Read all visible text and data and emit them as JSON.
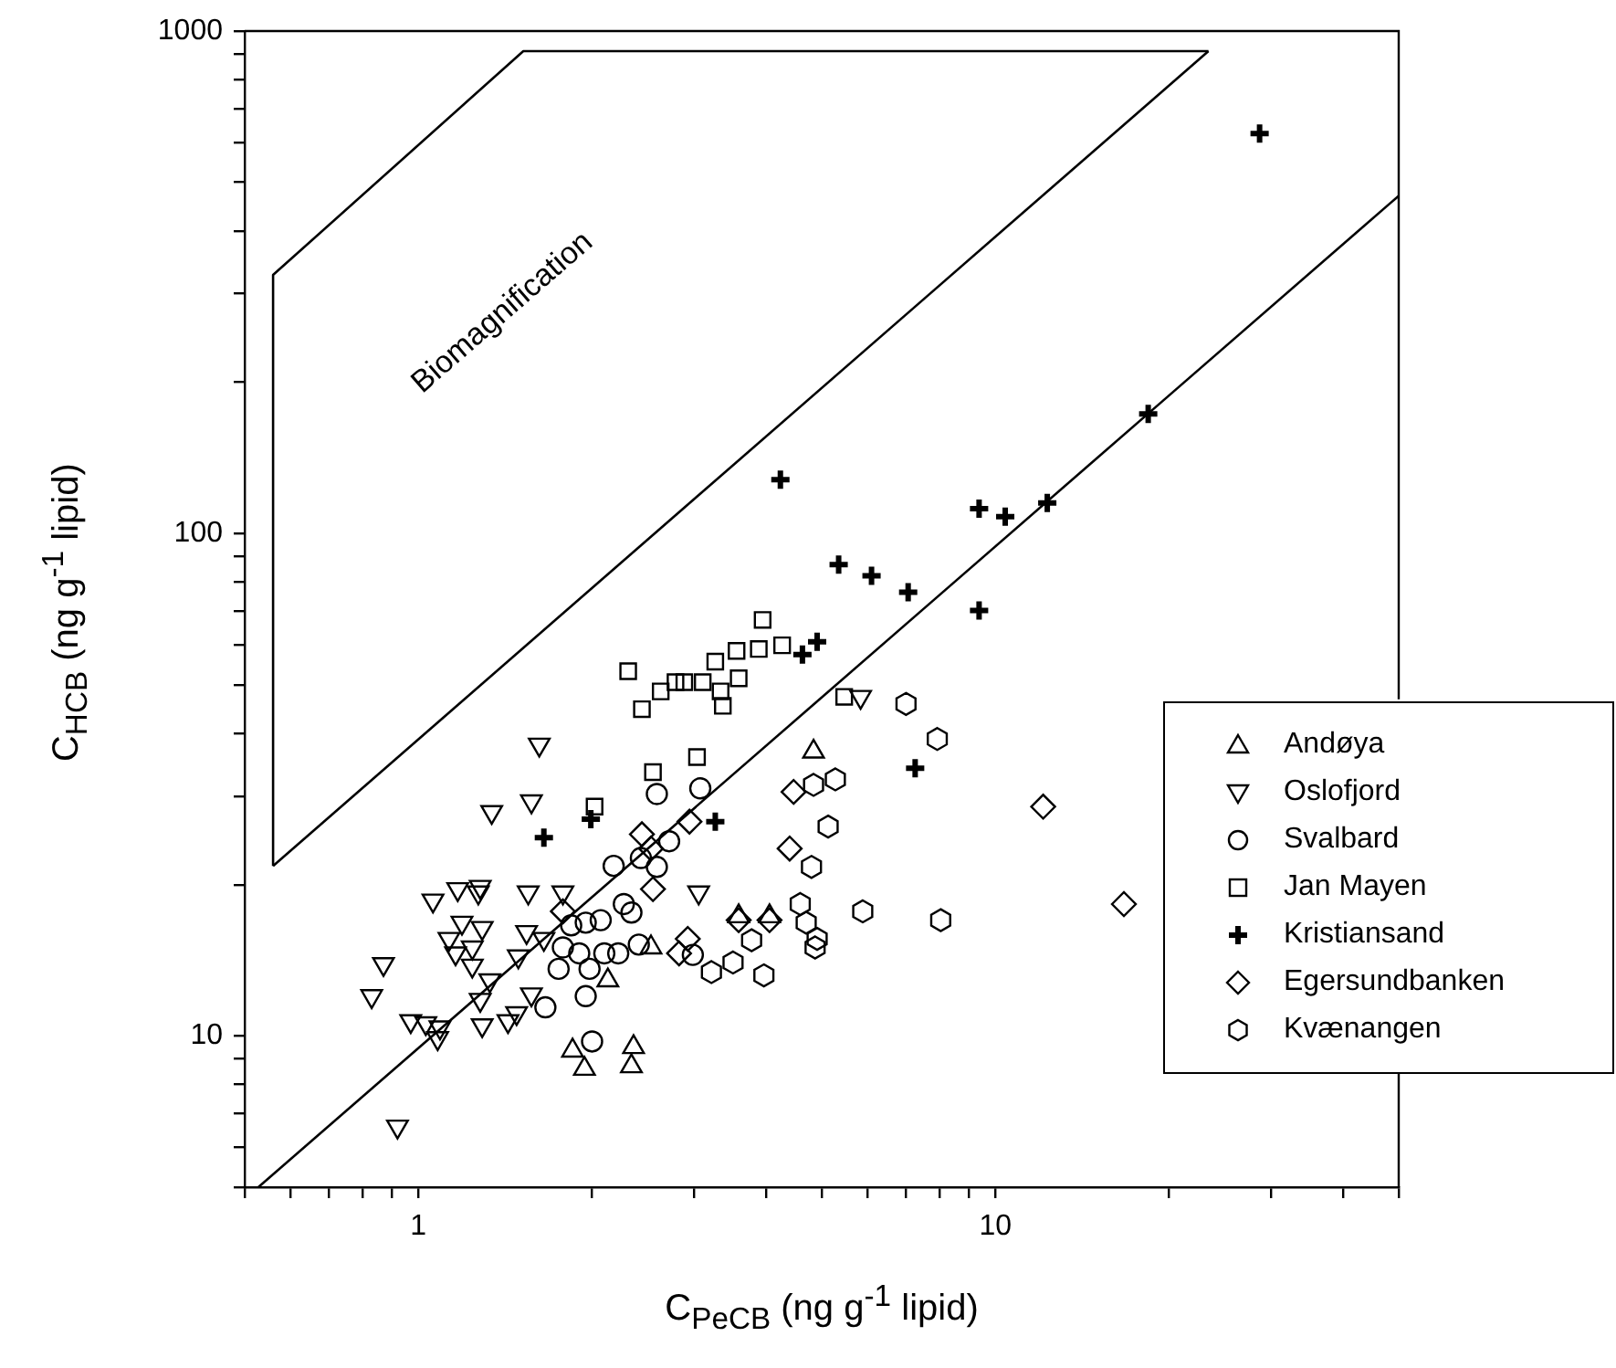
{
  "chart_data": {
    "type": "scatter",
    "xlabel": "C$_{PeCB}$ (ng g$^{-1}$ lipid)",
    "ylabel": "C$_{HCB}$ (ng g$^{-1}$ lipid)",
    "annotations": [
      "Biomagnification"
    ],
    "log": "xy",
    "legend": "right",
    "xlim": [
      0.5,
      50
    ],
    "ylim": [
      5,
      1000
    ],
    "xticks": [
      {
        "value": 0.5,
        "label": null
      },
      {
        "value": 0.6,
        "label": null
      },
      {
        "value": 0.7,
        "label": null
      },
      {
        "value": 0.8,
        "label": null
      },
      {
        "value": 0.9,
        "label": null
      },
      1,
      {
        "value": 2,
        "label": null
      },
      {
        "value": 3,
        "label": null
      },
      {
        "value": 4,
        "label": null
      },
      {
        "value": 5,
        "label": null
      },
      {
        "value": 6,
        "label": null
      },
      {
        "value": 7,
        "label": null
      },
      {
        "value": 8,
        "label": null
      },
      {
        "value": 9,
        "label": null
      },
      10,
      {
        "value": 20,
        "label": null
      },
      {
        "value": 30,
        "label": null
      },
      {
        "value": 40,
        "label": null
      },
      {
        "value": 50,
        "label": null
      }
    ],
    "yticks": [
      {
        "value": 5,
        "label": null
      },
      {
        "value": 6,
        "label": null
      },
      {
        "value": 7,
        "label": null
      },
      {
        "value": 8,
        "label": null
      },
      {
        "value": 9,
        "label": null
      },
      10,
      {
        "value": 20,
        "label": null
      },
      {
        "value": 30,
        "label": null
      },
      {
        "value": 40,
        "label": null
      },
      {
        "value": 50,
        "label": null
      },
      {
        "value": 60,
        "label": null
      },
      {
        "value": 70,
        "label": null
      },
      {
        "value": 80,
        "label": null
      },
      {
        "value": 90,
        "label": null
      },
      100,
      {
        "value": 200,
        "label": null
      },
      {
        "value": 300,
        "label": null
      },
      {
        "value": 400,
        "label": null
      },
      {
        "value": 500,
        "label": null
      },
      {
        "value": 600,
        "label": null
      },
      {
        "value": 700,
        "label": null
      },
      {
        "value": 800,
        "label": null
      },
      {
        "value": 900,
        "label": null
      },
      1000
    ],
    "series": [
      {
        "name": "Andøya",
        "color": "#000000",
        "marker": "triangle",
        "x": [
          1.85,
          1.94,
          2.36,
          2.34,
          2.13,
          2.53,
          3.59,
          4.06,
          4.84
        ],
        "values": [
          9.35,
          8.6,
          9.5,
          8.7,
          12.9,
          15,
          17.3,
          17.3,
          36.8
        ]
      },
      {
        "name": "Oslofjord",
        "color": "#000000",
        "marker": "triangle-down",
        "x": [
          1.62,
          1.57,
          1.34,
          1.06,
          1.17,
          1.28,
          1.27,
          1.55,
          1.78,
          1.19,
          1.29,
          1.13,
          1.16,
          1.24,
          1.24,
          1.54,
          1.65,
          1.49,
          0.87,
          0.83,
          0.97,
          1.03,
          1.09,
          1.08,
          1.33,
          1.28,
          1.29,
          1.43,
          1.48,
          1.57,
          0.92,
          5.84,
          3.06
        ],
        "values": [
          38,
          29.3,
          27.9,
          18.6,
          19.6,
          19.8,
          19.3,
          19.3,
          19.3,
          16.8,
          16.4,
          15.6,
          14.6,
          15,
          13.8,
          16.1,
          15.6,
          14.4,
          13.9,
          12,
          10.7,
          10.6,
          10.4,
          9.9,
          12.9,
          11.8,
          10.5,
          10.7,
          11.1,
          12.1,
          6.6,
          47.3,
          19.3
        ]
      },
      {
        "name": "Svalbard",
        "color": "#000000",
        "marker": "circle",
        "x": [
          2.59,
          3.08,
          2.72,
          2.18,
          2.43,
          2.27,
          2.34,
          1.84,
          1.95,
          2.07,
          1.78,
          1.75,
          1.98,
          2.1,
          2.22,
          1.95,
          1.66,
          2.0,
          2.41,
          2.99,
          1.9,
          2.59
        ],
        "values": [
          30.3,
          31.1,
          24.4,
          21.8,
          22.6,
          18.3,
          17.6,
          16.6,
          16.8,
          17,
          15,
          13.6,
          13.6,
          14.6,
          14.6,
          12,
          11.4,
          9.75,
          15.2,
          14.5,
          14.6,
          21.7
        ]
      },
      {
        "name": "Jan Mayen",
        "color": "#000000",
        "marker": "square",
        "x": [
          3.95,
          4.27,
          3.89,
          3.56,
          3.27,
          3.59,
          3.34,
          3.37,
          3.11,
          2.89,
          2.79,
          2.63,
          2.44,
          2.31,
          3.04,
          2.55,
          5.47,
          2.02
        ],
        "values": [
          67.3,
          59.9,
          58.9,
          58.4,
          55.6,
          51.5,
          48.5,
          45.4,
          50.6,
          50.6,
          50.6,
          48.5,
          44.7,
          53.2,
          35.9,
          33.5,
          47.3,
          28.6
        ]
      },
      {
        "name": "Kristiansand",
        "color": "#000000",
        "marker": "cross",
        "x": [
          4.24,
          5.35,
          6.1,
          7.06,
          9.37,
          10.4,
          12.3,
          18.4,
          28.7,
          9.37,
          4.63,
          4.91,
          7.26,
          3.27,
          1.99,
          1.65
        ],
        "values": [
          128,
          86.7,
          82.4,
          76.4,
          112,
          108,
          115,
          173,
          625,
          70.3,
          57.4,
          60.9,
          34.1,
          26.7,
          27,
          24.8
        ]
      },
      {
        "name": "Egersundbanken",
        "color": "#000000",
        "marker": "diamond",
        "x": [
          12.1,
          16.7,
          4.47,
          4.4,
          2.95,
          2.44,
          2.53,
          2.55,
          2.93,
          2.83,
          3.59,
          4.06,
          1.78
        ],
        "values": [
          28.6,
          18.3,
          30.6,
          23.6,
          26.7,
          25.2,
          23.6,
          19.6,
          15.6,
          14.6,
          17,
          17,
          17.7
        ]
      },
      {
        "name": "Kvænangen",
        "color": "#000000",
        "x": [
          7.0,
          7.93,
          4.84,
          5.28,
          5.13,
          4.8,
          4.59,
          5.89,
          8.04,
          4.7,
          4.91,
          4.87,
          3.78,
          3.51,
          3.97,
          3.22
        ],
        "values": [
          45.8,
          39,
          31.6,
          32.4,
          26.1,
          21.7,
          18.3,
          17.7,
          17,
          16.8,
          15.6,
          15,
          15.5,
          14,
          13.2,
          13.4
        ]
      },
      {
        "type": "line",
        "color": "#000000",
        "x": [
          0.528,
          50
        ],
        "values": [
          5,
          470
        ]
      },
      {
        "type": "line",
        "color": "#000000",
        "x": [
          0.56,
          23.4
        ],
        "values": [
          21.8,
          912
        ]
      },
      {
        "type": "line",
        "color": "#000000",
        "x": [
          0.56,
          0.56,
          1.52,
          23.4
        ],
        "values": [
          21.8,
          327,
          912,
          912
        ]
      }
    ]
  }
}
